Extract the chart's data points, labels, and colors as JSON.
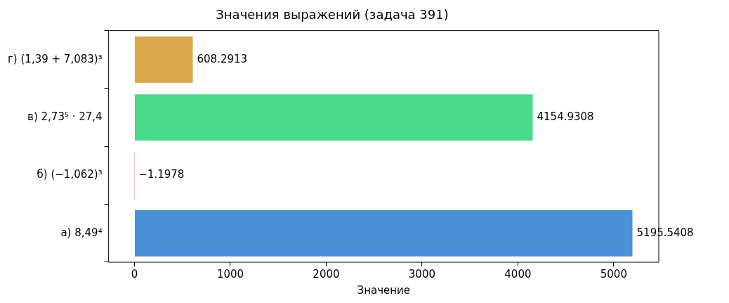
{
  "chart_data": {
    "type": "bar",
    "orientation": "horizontal",
    "title": "Значения выражений (задача 391)",
    "xlabel": "Значение",
    "categories": [
      "г) (1,39 + 7,083)³",
      "в) 2,73⁵ · 27,4",
      "б) (−1,062)³",
      "а) 8,49⁴"
    ],
    "values": [
      608.2913,
      4154.9308,
      -1.1978,
      5195.5408
    ],
    "colors": [
      "#d9a84a",
      "#4bd98a",
      "#d94a4a",
      "#4a90d9"
    ],
    "xlim": [
      -270,
      5470
    ],
    "xticks": [
      0,
      1000,
      2000,
      3000,
      4000,
      5000
    ],
    "data_labels": true,
    "grid": false,
    "legend": false
  }
}
